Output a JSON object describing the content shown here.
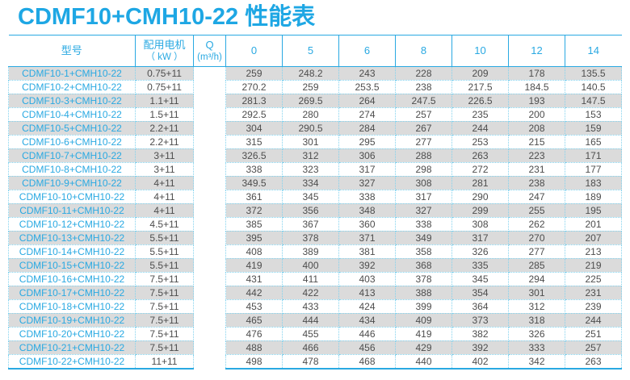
{
  "title": "CDMF10+CMH10-22 性能表",
  "colors": {
    "accent_cyan": "#29a9e2",
    "dotted_border": "#82d2ee",
    "stripe_gray": "#dbdbdb",
    "data_text": "#4d4d4d"
  },
  "table": {
    "header": {
      "model": "型号",
      "motor_line1": "配用电机",
      "motor_line2": "（ kW ）",
      "q_line1": "Q",
      "q_line2": "(m³/h)",
      "flow": [
        "0",
        "5",
        "6",
        "8",
        "10",
        "12",
        "14"
      ]
    },
    "rows": [
      {
        "model": "CDMF10-1+CMH10-22",
        "motor": "0.75+11",
        "values": [
          "259",
          "248.2",
          "243",
          "228",
          "209",
          "178",
          "135.5"
        ]
      },
      {
        "model": "CDMF10-2+CMH10-22",
        "motor": "0.75+11",
        "values": [
          "270.2",
          "259",
          "253.5",
          "238",
          "217.5",
          "184.5",
          "140.5"
        ]
      },
      {
        "model": "CDMF10-3+CMH10-22",
        "motor": "1.1+11",
        "values": [
          "281.3",
          "269.5",
          "264",
          "247.5",
          "226.5",
          "193",
          "147.5"
        ]
      },
      {
        "model": "CDMF10-4+CMH10-22",
        "motor": "1.5+11",
        "values": [
          "292.5",
          "280",
          "274",
          "257",
          "235",
          "200",
          "153"
        ]
      },
      {
        "model": "CDMF10-5+CMH10-22",
        "motor": "2.2+11",
        "values": [
          "304",
          "290.5",
          "284",
          "267",
          "244",
          "208",
          "159"
        ]
      },
      {
        "model": "CDMF10-6+CMH10-22",
        "motor": "2.2+11",
        "values": [
          "315",
          "301",
          "295",
          "277",
          "253",
          "215",
          "165"
        ]
      },
      {
        "model": "CDMF10-7+CMH10-22",
        "motor": "3+11",
        "values": [
          "326.5",
          "312",
          "306",
          "288",
          "263",
          "223",
          "171"
        ]
      },
      {
        "model": "CDMF10-8+CMH10-22",
        "motor": "3+11",
        "values": [
          "338",
          "323",
          "317",
          "298",
          "272",
          "231",
          "177"
        ]
      },
      {
        "model": "CDMF10-9+CMH10-22",
        "motor": "4+11",
        "values": [
          "349.5",
          "334",
          "327",
          "308",
          "281",
          "238",
          "183"
        ]
      },
      {
        "model": "CDMF10-10+CMH10-22",
        "motor": "4+11",
        "values": [
          "361",
          "345",
          "338",
          "317",
          "290",
          "247",
          "189"
        ]
      },
      {
        "model": "CDMF10-11+CMH10-22",
        "motor": "4+11",
        "values": [
          "372",
          "356",
          "348",
          "327",
          "299",
          "255",
          "195"
        ]
      },
      {
        "model": "CDMF10-12+CMH10-22",
        "motor": "4.5+11",
        "values": [
          "385",
          "367",
          "360",
          "338",
          "308",
          "262",
          "201"
        ]
      },
      {
        "model": "CDMF10-13+CMH10-22",
        "motor": "5.5+11",
        "values": [
          "395",
          "378",
          "371",
          "349",
          "317",
          "270",
          "207"
        ]
      },
      {
        "model": "CDMF10-14+CMH10-22",
        "motor": "5.5+11",
        "values": [
          "408",
          "389",
          "381",
          "358",
          "326",
          "277",
          "213"
        ]
      },
      {
        "model": "CDMF10-15+CMH10-22",
        "motor": "5.5+11",
        "values": [
          "419",
          "400",
          "392",
          "368",
          "335",
          "285",
          "219"
        ]
      },
      {
        "model": "CDMF10-16+CMH10-22",
        "motor": "7.5+11",
        "values": [
          "431",
          "411",
          "403",
          "378",
          "345",
          "294",
          "225"
        ]
      },
      {
        "model": "CDMF10-17+CMH10-22",
        "motor": "7.5+11",
        "values": [
          "442",
          "422",
          "413",
          "388",
          "354",
          "301",
          "231"
        ]
      },
      {
        "model": "CDMF10-18+CMH10-22",
        "motor": "7.5+11",
        "values": [
          "453",
          "433",
          "424",
          "399",
          "364",
          "312",
          "239"
        ]
      },
      {
        "model": "CDMF10-19+CMH10-22",
        "motor": "7.5+11",
        "values": [
          "465",
          "444",
          "434",
          "409",
          "373",
          "318",
          "244"
        ]
      },
      {
        "model": "CDMF10-20+CMH10-22",
        "motor": "7.5+11",
        "values": [
          "476",
          "455",
          "446",
          "419",
          "382",
          "326",
          "251"
        ]
      },
      {
        "model": "CDMF10-21+CMH10-22",
        "motor": "7.5+11",
        "values": [
          "488",
          "466",
          "456",
          "429",
          "392",
          "333",
          "257"
        ]
      },
      {
        "model": "CDMF10-22+CMH10-22",
        "motor": "11+11",
        "values": [
          "498",
          "478",
          "468",
          "440",
          "402",
          "342",
          "263"
        ]
      }
    ]
  }
}
